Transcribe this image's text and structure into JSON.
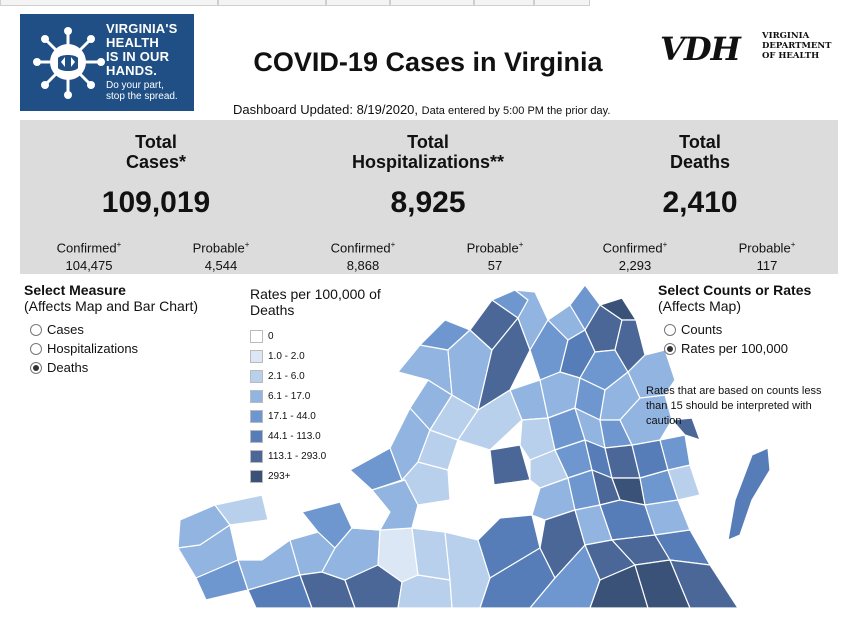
{
  "logo": {
    "line1": "VIRGINIA'S",
    "line2": "HEALTH",
    "line3": "IS IN OUR",
    "line4": "HANDS.",
    "tag1": "Do your part,",
    "tag2": "stop the spread.",
    "bg_color": "#1f4f84"
  },
  "header": {
    "title": "COVID-19 Cases in Virginia",
    "updated": "Dashboard Updated: 8/19/2020,",
    "updated_note": "Data entered by 5:00 PM the prior day."
  },
  "vdh": {
    "mark": "VDH",
    "sub1": "VIRGINIA",
    "sub2": "DEPARTMENT",
    "sub3": "OF HEALTH"
  },
  "stats": [
    {
      "title1": "Total",
      "title2": "Cases*",
      "total": "109,019",
      "confirmed_label": "Confirmed",
      "confirmed": "104,475",
      "probable_label": "Probable",
      "probable": "4,544"
    },
    {
      "title1": "Total",
      "title2": "Hospitalizations**",
      "total": "8,925",
      "confirmed_label": "Confirmed",
      "confirmed": "8,868",
      "probable_label": "Probable",
      "probable": "57"
    },
    {
      "title1": "Total",
      "title2": "Deaths",
      "total": "2,410",
      "confirmed_label": "Confirmed",
      "confirmed": "2,293",
      "probable_label": "Probable",
      "probable": "117"
    }
  ],
  "measure": {
    "title": "Select Measure",
    "subtitle": "(Affects Map and Bar Chart)",
    "options": [
      {
        "label": "Cases",
        "selected": false
      },
      {
        "label": "Hospitalizations",
        "selected": false
      },
      {
        "label": "Deaths",
        "selected": true
      }
    ]
  },
  "legend": {
    "title1": "Rates per 100,000 of",
    "title2": "Deaths",
    "bins": [
      {
        "label": "0",
        "color": "#ffffff"
      },
      {
        "label": "1.0 - 2.0",
        "color": "#dbe7f5"
      },
      {
        "label": "2.1 - 6.0",
        "color": "#b8d0eb"
      },
      {
        "label": "6.1 - 17.0",
        "color": "#91b4e0"
      },
      {
        "label": "17.1 - 44.0",
        "color": "#6f97cf"
      },
      {
        "label": "44.1 - 113.0",
        "color": "#567db8"
      },
      {
        "label": "113.1 - 293.0",
        "color": "#4a6797"
      },
      {
        "label": "293+",
        "color": "#3b5278"
      }
    ]
  },
  "counts": {
    "title": "Select Counts or Rates",
    "subtitle": "(Affects Map)",
    "options": [
      {
        "label": "Counts",
        "selected": false
      },
      {
        "label": "Rates per 100,000",
        "selected": true
      }
    ]
  },
  "caution": "Rates that are based on counts less than 15 should be interpreted with caution"
}
